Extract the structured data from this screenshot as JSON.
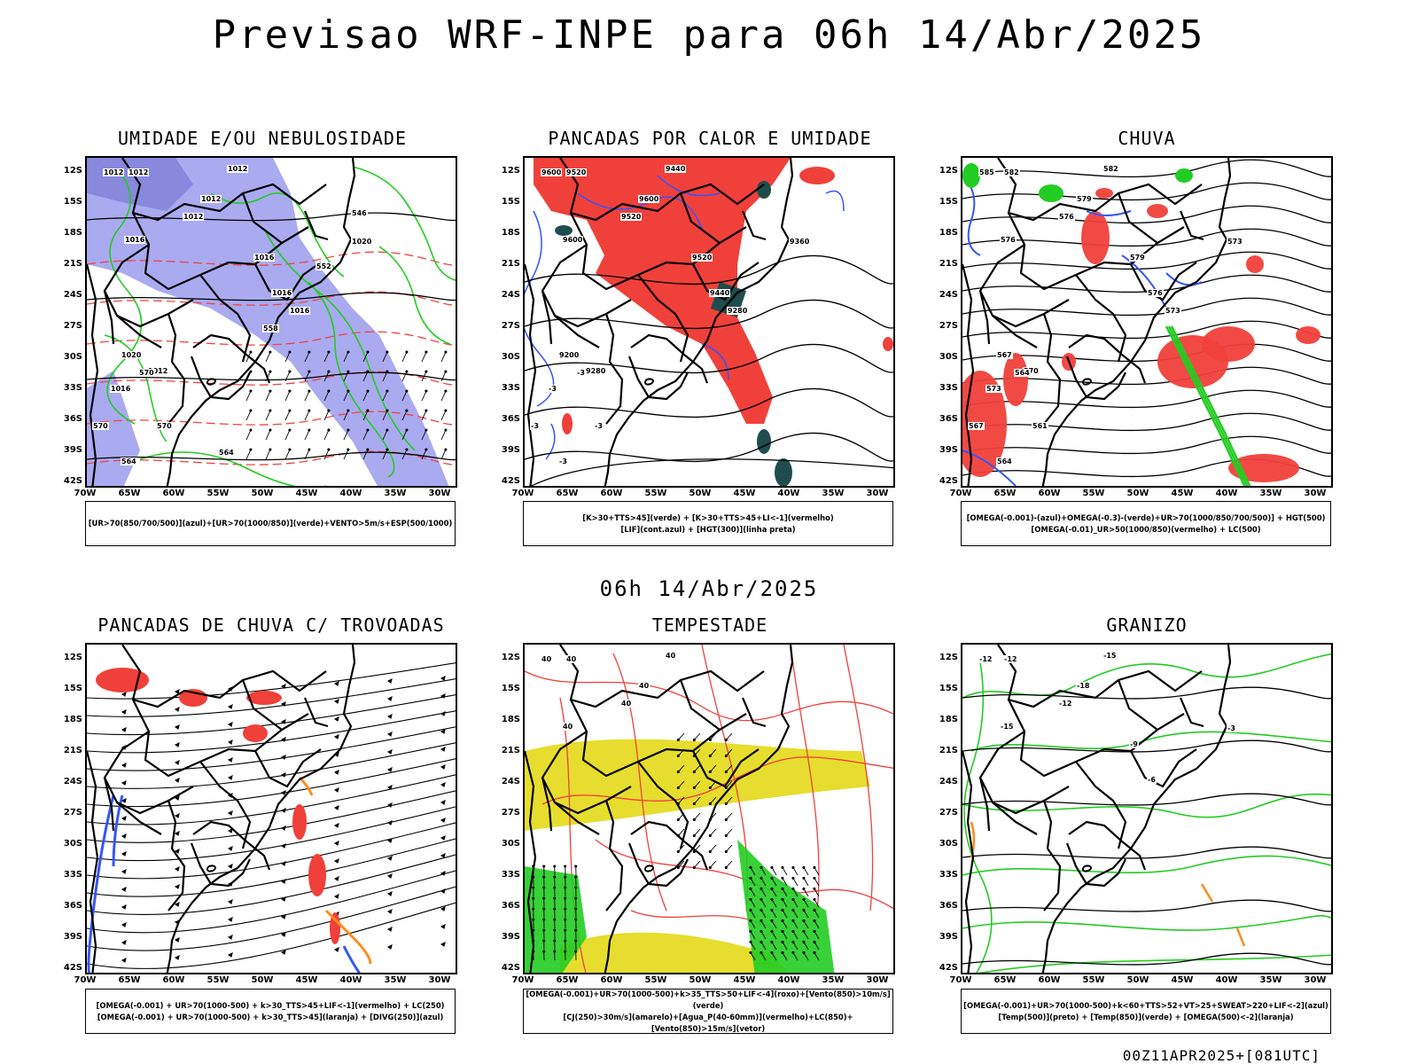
{
  "title": "Previsao WRF-INPE  para 06h 14/Abr/2025",
  "subtitle": "06h 14/Abr/2025",
  "footer": "00Z11APR2025+[081UTC]",
  "axes": {
    "lat_labels": [
      "12S",
      "15S",
      "18S",
      "21S",
      "24S",
      "27S",
      "30S",
      "33S",
      "36S",
      "39S",
      "42S"
    ],
    "lon_labels": [
      "70W",
      "65W",
      "60W",
      "55W",
      "50W",
      "45W",
      "40W",
      "35W",
      "30W"
    ]
  },
  "panels": [
    {
      "title": "UMIDADE E/OU NEBULOSIDADE",
      "legend": [
        "[UR>70(850/700/500)](azul)+[UR>70(1000/850)](verde)+VENTO>5m/s+ESP(500/1000)"
      ],
      "labels": [
        "1012",
        "1012",
        "1012",
        "1012",
        "1012",
        "1016",
        "1016",
        "1016",
        "1020",
        "1016",
        "1012",
        "1020",
        "1016",
        "570",
        "570",
        "570",
        "564",
        "564",
        "558",
        "552",
        "546"
      ]
    },
    {
      "title": "PANCADAS POR CALOR E UMIDADE",
      "legend": [
        "[K>30+TTS>45](verde) + [K>30+TTS>45+LI<-1](vermelho)",
        "[LIF](cont.azul) + [HGT(300)](linha preta)"
      ],
      "labels": [
        "9600",
        "9520",
        "9440",
        "9600",
        "9520",
        "9600",
        "9520",
        "9440",
        "9360",
        "9280",
        "9280",
        "9200",
        "-3",
        "-3",
        "-3",
        "-3",
        "-3"
      ]
    },
    {
      "title": "CHUVA",
      "legend": [
        "[OMEGA(-0.001)-(azul)+OMEGA(-0.3)-(verde)+UR>70(1000/850/700/500)] + HGT(500)",
        "[OMEGA(-0.01)_UR>50(1000/850)(vermelho) + LC(500)"
      ],
      "labels": [
        "585",
        "582",
        "582",
        "579",
        "576",
        "576",
        "579",
        "576",
        "573",
        "573",
        "570",
        "567",
        "573",
        "567",
        "564",
        "561",
        "564"
      ]
    },
    {
      "title": "PANCADAS DE CHUVA C/ TROVOADAS",
      "legend": [
        "[OMEGA(-0.001) + UR>70(1000-500) + k>30_TTS>45+LIF<-1](vermelho) + LC(250)",
        "[OMEGA(-0.001) + UR>70(1000-500) + k>30_TTS>45](laranja) + [DIVG(250)](azul)"
      ],
      "labels": []
    },
    {
      "title": "TEMPESTADE",
      "legend": [
        "[OMEGA(-0.001)+UR>70(1000-500)+k>35_TTS>50+LIF<-4](roxo)+[Vento(850)>10m/s](verde)",
        "[CJ(250)>30m/s](amarelo)+[Agua_P(40-60mm)](vermelho)+LC(850)+[Vento(850)>15m/s](vetor)"
      ],
      "labels": [
        "40",
        "40",
        "40",
        "40",
        "40",
        "40"
      ]
    },
    {
      "title": "GRANIZO",
      "legend": [
        "[OMEGA(-0.001)+UR>70(1000-500)+k<60+TTS>52+VT>25+SWEAT>220+LIF<-2](azul)",
        "[Temp(500)](preto) + [Temp(850)](verde) + [OMEGA(500)<-2](laranja)"
      ],
      "labels": [
        "-12",
        "-12",
        "-15",
        "-18",
        "-12",
        "-15",
        "-9",
        "-6",
        "-3"
      ]
    }
  ],
  "colors": {
    "blue_fill": "#aaaaf0",
    "blue_dark": "#8888dd",
    "red": "#f0403a",
    "green": "#22cc22",
    "dark_teal": "#1f4d4d",
    "yellow": "#e6dd2e",
    "orange": "#ff8c1a",
    "contour_blue": "#3355ff"
  }
}
